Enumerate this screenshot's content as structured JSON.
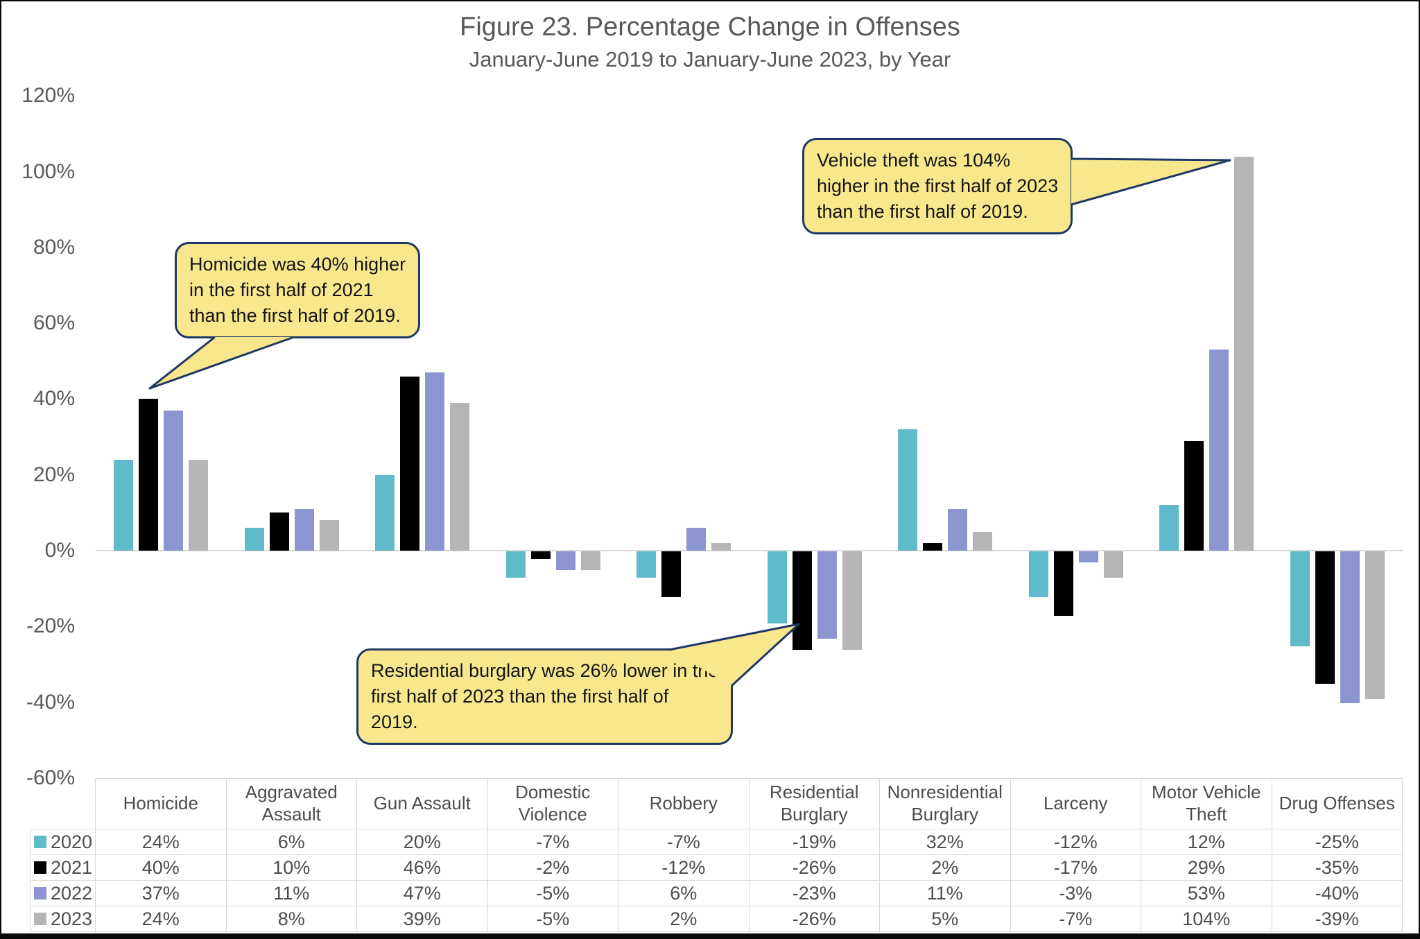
{
  "figure": {
    "title": "Figure 23. Percentage Change in Offenses",
    "subtitle": "January-June 2019 to January-June 2023, by Year"
  },
  "chart_data": {
    "type": "bar",
    "title": "Figure 23. Percentage Change in Offenses",
    "subtitle": "January-June 2019 to January-June 2023, by Year",
    "categories": [
      "Homicide",
      "Aggravated Assault",
      "Gun Assault",
      "Domestic Violence",
      "Robbery",
      "Residential Burglary",
      "Nonresidential Burglary",
      "Larceny",
      "Motor Vehicle Theft",
      "Drug Offenses"
    ],
    "series": [
      {
        "name": "2020",
        "color": "#5fbac9",
        "values": [
          24,
          6,
          20,
          -7,
          -7,
          -19,
          32,
          -12,
          12,
          -25
        ]
      },
      {
        "name": "2021",
        "color": "#000000",
        "values": [
          40,
          10,
          46,
          -2,
          -12,
          -26,
          2,
          -17,
          29,
          -35
        ]
      },
      {
        "name": "2022",
        "color": "#8c95cf",
        "values": [
          37,
          11,
          47,
          -5,
          6,
          -23,
          11,
          -3,
          53,
          -40
        ]
      },
      {
        "name": "2023",
        "color": "#b5b5b8",
        "values": [
          24,
          8,
          39,
          -5,
          2,
          -26,
          5,
          -7,
          104,
          -39
        ]
      }
    ],
    "value_format": "percent",
    "ylim": [
      -60,
      120
    ],
    "y_tick_values": [
      120,
      100,
      80,
      60,
      40,
      20,
      0,
      -20,
      -40,
      -60
    ],
    "y_tick_labels": [
      "120%",
      "100%",
      "80%",
      "60%",
      "40%",
      "20%",
      "0%",
      "-20%",
      "-40%",
      "-60%"
    ],
    "grid": false,
    "legend_position": "table-left-column"
  },
  "annotations": [
    {
      "id": "homicide-callout",
      "text": "Homicide was 40% higher in the first half of 2021 than the first half of 2019.",
      "lines": [
        "Homicide was 40% higher",
        "in the first half of 2021",
        "than the first half of 2019."
      ]
    },
    {
      "id": "vehicle-theft-callout",
      "text": "Vehicle theft was 104% higher in the first half of 2023 than the first half of 2019.",
      "lines": [
        "Vehicle theft was 104%",
        "higher in the first half of 2023",
        "than the first half of 2019."
      ]
    },
    {
      "id": "residential-burglary-callout",
      "text": "Residential burglary was 26% lower in the first half of 2023 than the first half of 2019.",
      "lines": [
        "Residential burglary was 26% lower in the",
        "first half of 2023 than the first half of",
        "2019."
      ]
    }
  ],
  "colors": {
    "callout_fill": "#f9e78e",
    "callout_border": "#1f3864",
    "axis_text": "#595959",
    "table_text": "#4d4d4d",
    "table_border": "#d9d9d9",
    "baseline": "#d9d9d9"
  }
}
